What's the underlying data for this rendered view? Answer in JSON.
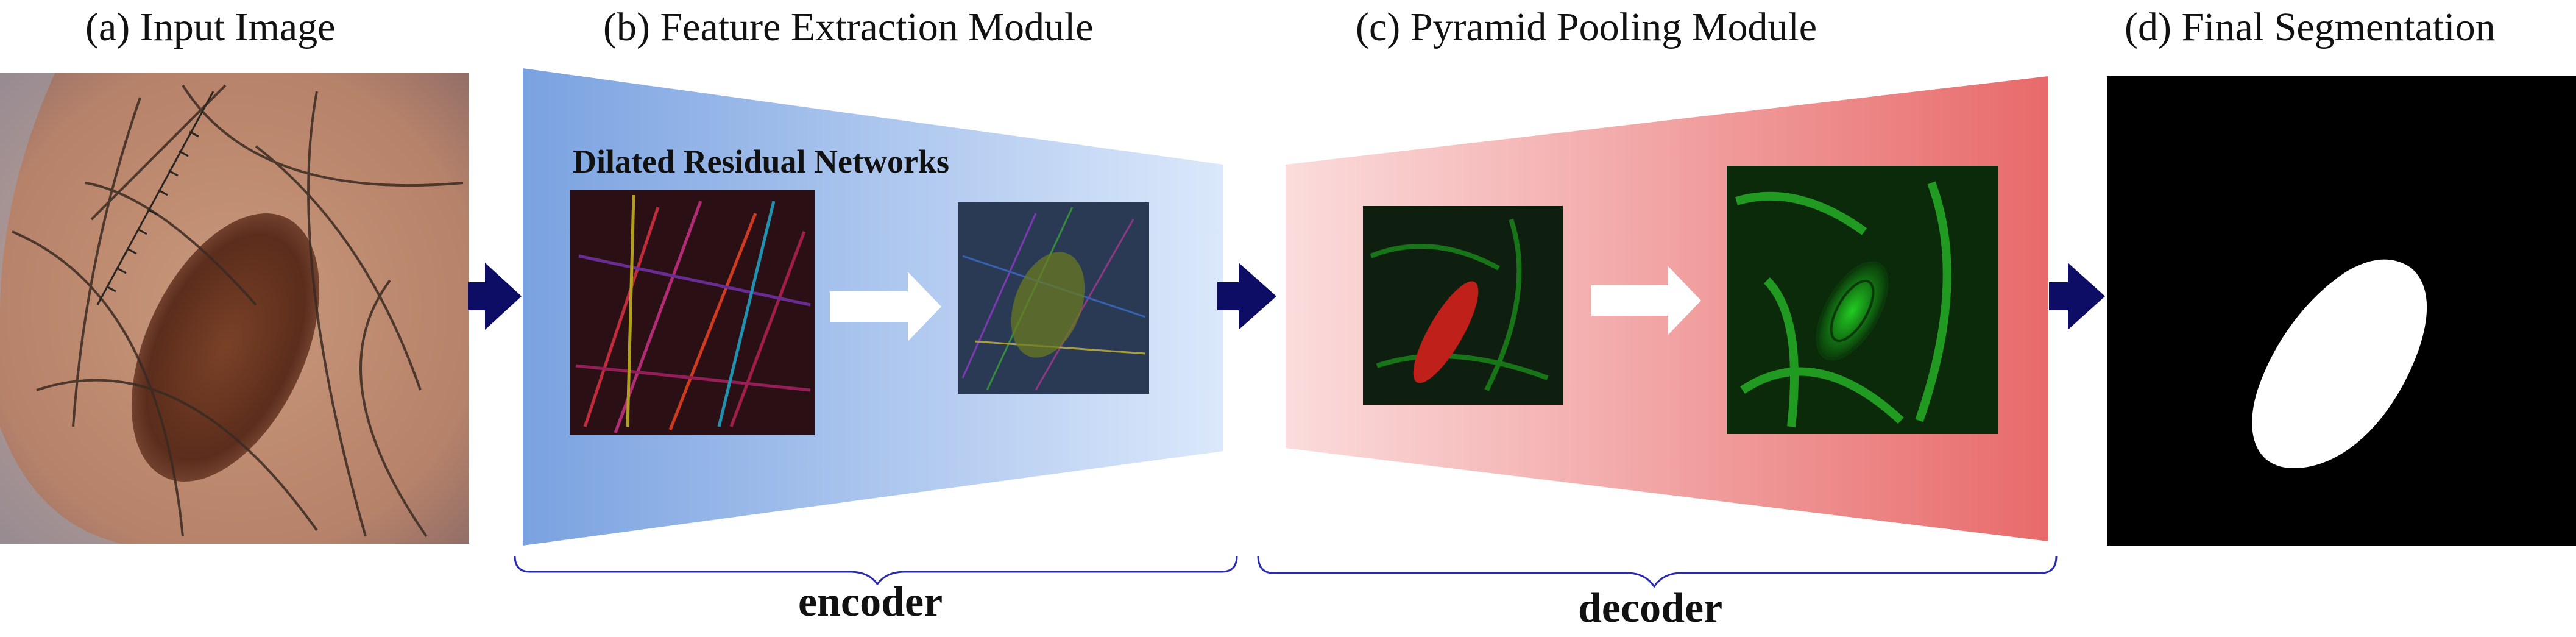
{
  "panels": {
    "a": {
      "title": "(a) Input Image"
    },
    "b": {
      "title": "(b) Feature Extraction Module",
      "subtitle": "Dilated Residual Networks"
    },
    "c": {
      "title": "(c) Pyramid Pooling Module"
    },
    "d": {
      "title": "(d) Final Segmentation"
    }
  },
  "braces": {
    "encoder": "encoder",
    "decoder": "decoder"
  },
  "colors": {
    "arrow": "#0d0d66",
    "brace": "#2a2ab0",
    "encoder_dark": "#7aa2e0",
    "encoder_light": "#dbe8fb",
    "decoder_light": "#fbdcdc",
    "decoder_dark": "#e86a6a"
  }
}
